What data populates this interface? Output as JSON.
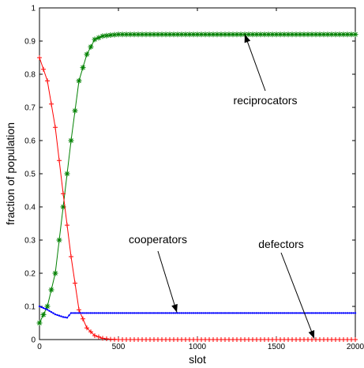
{
  "chart_data": {
    "type": "line",
    "xlabel": "slot",
    "ylabel": "fraction of population",
    "xlim": [
      0,
      2000
    ],
    "ylim": [
      0,
      1
    ],
    "xticks": [
      0,
      500,
      1000,
      1500,
      2000
    ],
    "yticks": [
      0,
      0.1,
      0.2,
      0.3,
      0.4,
      0.5,
      0.6,
      0.7,
      0.8,
      0.9,
      1
    ],
    "grid": false,
    "series": [
      {
        "name": "reciprocators",
        "color": "#008000",
        "marker": "asterisk",
        "x": [
          0,
          50,
          100,
          150,
          200,
          250,
          300,
          350,
          400,
          450,
          500,
          600,
          800,
          1000,
          1500,
          2000
        ],
        "y": [
          0.05,
          0.1,
          0.2,
          0.4,
          0.6,
          0.78,
          0.86,
          0.905,
          0.915,
          0.918,
          0.92,
          0.92,
          0.92,
          0.92,
          0.92,
          0.92
        ]
      },
      {
        "name": "defectors",
        "color": "#ff0000",
        "marker": "plus",
        "x": [
          0,
          50,
          100,
          150,
          200,
          250,
          300,
          350,
          400,
          450,
          500,
          600,
          800,
          1000,
          1500,
          2000
        ],
        "y": [
          0.85,
          0.78,
          0.64,
          0.44,
          0.25,
          0.09,
          0.035,
          0.012,
          0.004,
          0.001,
          0,
          0,
          0,
          0,
          0,
          0
        ]
      },
      {
        "name": "cooperators",
        "color": "#0000ff",
        "marker": "dot",
        "x": [
          0,
          50,
          100,
          150,
          175,
          200,
          250,
          300,
          500,
          1000,
          1500,
          2000
        ],
        "y": [
          0.1,
          0.09,
          0.076,
          0.068,
          0.066,
          0.08,
          0.08,
          0.08,
          0.08,
          0.08,
          0.08,
          0.08
        ]
      }
    ],
    "annotations": [
      {
        "text": "reciprocators",
        "arrow_to": [
          1300,
          0.92
        ]
      },
      {
        "text": "cooperators",
        "arrow_to": [
          870,
          0.082
        ]
      },
      {
        "text": "defectors",
        "arrow_to": [
          1740,
          0.003
        ]
      }
    ]
  }
}
